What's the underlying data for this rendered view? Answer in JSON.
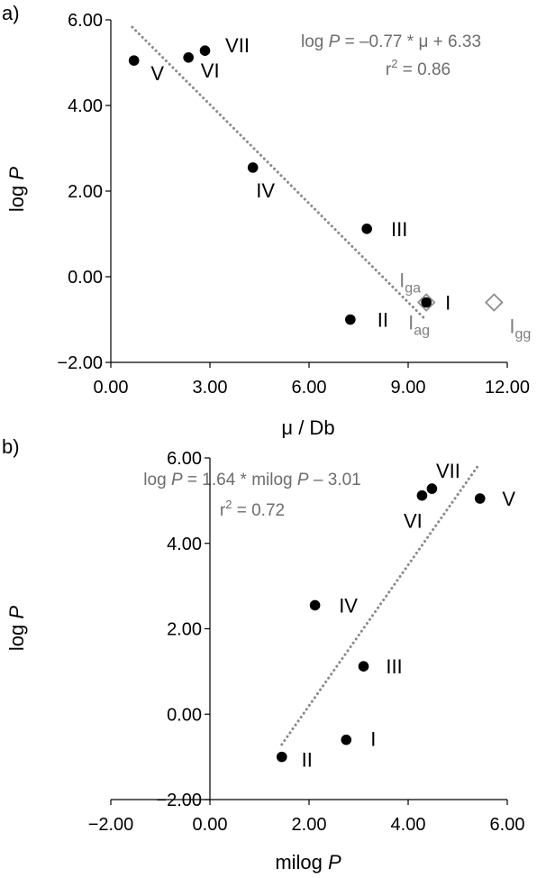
{
  "chart_data": [
    {
      "panel": "a)",
      "type": "scatter",
      "xlabel": "μ / Db",
      "ylabel_parts": [
        "log ",
        "P"
      ],
      "xlim": [
        0,
        12
      ],
      "ylim": [
        -2,
        6
      ],
      "xticks": [
        "0.00",
        "3.00",
        "6.00",
        "9.00",
        "12.00"
      ],
      "yticks": [
        "−2.00",
        "0.00",
        "2.00",
        "4.00",
        "6.00"
      ],
      "points": [
        {
          "label": "V",
          "x": 0.7,
          "y": 5.05
        },
        {
          "label": "VI",
          "x": 2.35,
          "y": 5.12
        },
        {
          "label": "VII",
          "x": 2.85,
          "y": 5.28
        },
        {
          "label": "IV",
          "x": 4.3,
          "y": 2.55
        },
        {
          "label": "III",
          "x": 7.75,
          "y": 1.12
        },
        {
          "label": "II",
          "x": 7.25,
          "y": -1.0
        },
        {
          "label": "I",
          "x": 9.55,
          "y": -0.6
        }
      ],
      "open_points": [
        {
          "label_base": "I",
          "label_sub": "ga",
          "x": 9.55,
          "y": -0.6
        },
        {
          "label_base": "I",
          "label_sub": "ag",
          "x": 9.55,
          "y": -0.6
        },
        {
          "label_base": "I",
          "label_sub": "gg",
          "x": 11.6,
          "y": -0.6
        }
      ],
      "trendline": {
        "x": [
          0.65,
          9.55
        ],
        "y": [
          5.83,
          -1.02
        ],
        "style": "dotted"
      },
      "equation": {
        "line1": {
          "a": "log ",
          "b": "P",
          "c": " = –0.77 * μ + 6.33"
        },
        "line2": {
          "a": "r",
          "sup": "2",
          "b": " = 0.86"
        }
      }
    },
    {
      "panel": "b)",
      "type": "scatter",
      "xlabel_parts": [
        "milog ",
        "P"
      ],
      "ylabel_parts": [
        "log ",
        "P"
      ],
      "xlim": [
        -2,
        6
      ],
      "ylim": [
        -2,
        6
      ],
      "xticks": [
        "−2.00",
        "0.00",
        "2.00",
        "4.00",
        "6.00"
      ],
      "yticks": [
        "−2.00",
        "0.00",
        "2.00",
        "4.00",
        "6.00"
      ],
      "points": [
        {
          "label": "VI",
          "x": 4.28,
          "y": 5.12
        },
        {
          "label": "VII",
          "x": 4.48,
          "y": 5.28
        },
        {
          "label": "V",
          "x": 5.45,
          "y": 5.05
        },
        {
          "label": "IV",
          "x": 2.12,
          "y": 2.55
        },
        {
          "label": "III",
          "x": 3.1,
          "y": 1.12
        },
        {
          "label": "I",
          "x": 2.75,
          "y": -0.6
        },
        {
          "label": "II",
          "x": 1.45,
          "y": -1.0
        }
      ],
      "trendline": {
        "x": [
          1.45,
          5.4
        ],
        "y": [
          -0.71,
          5.8
        ],
        "style": "dotted"
      },
      "equation": {
        "line1": {
          "a": "log ",
          "b": "P",
          "c": " = 1.64 * milog ",
          "d": "P",
          "e": " – 3.01"
        },
        "line2": {
          "a": "r",
          "sup": "2",
          "b": " = 0.72"
        }
      }
    }
  ]
}
